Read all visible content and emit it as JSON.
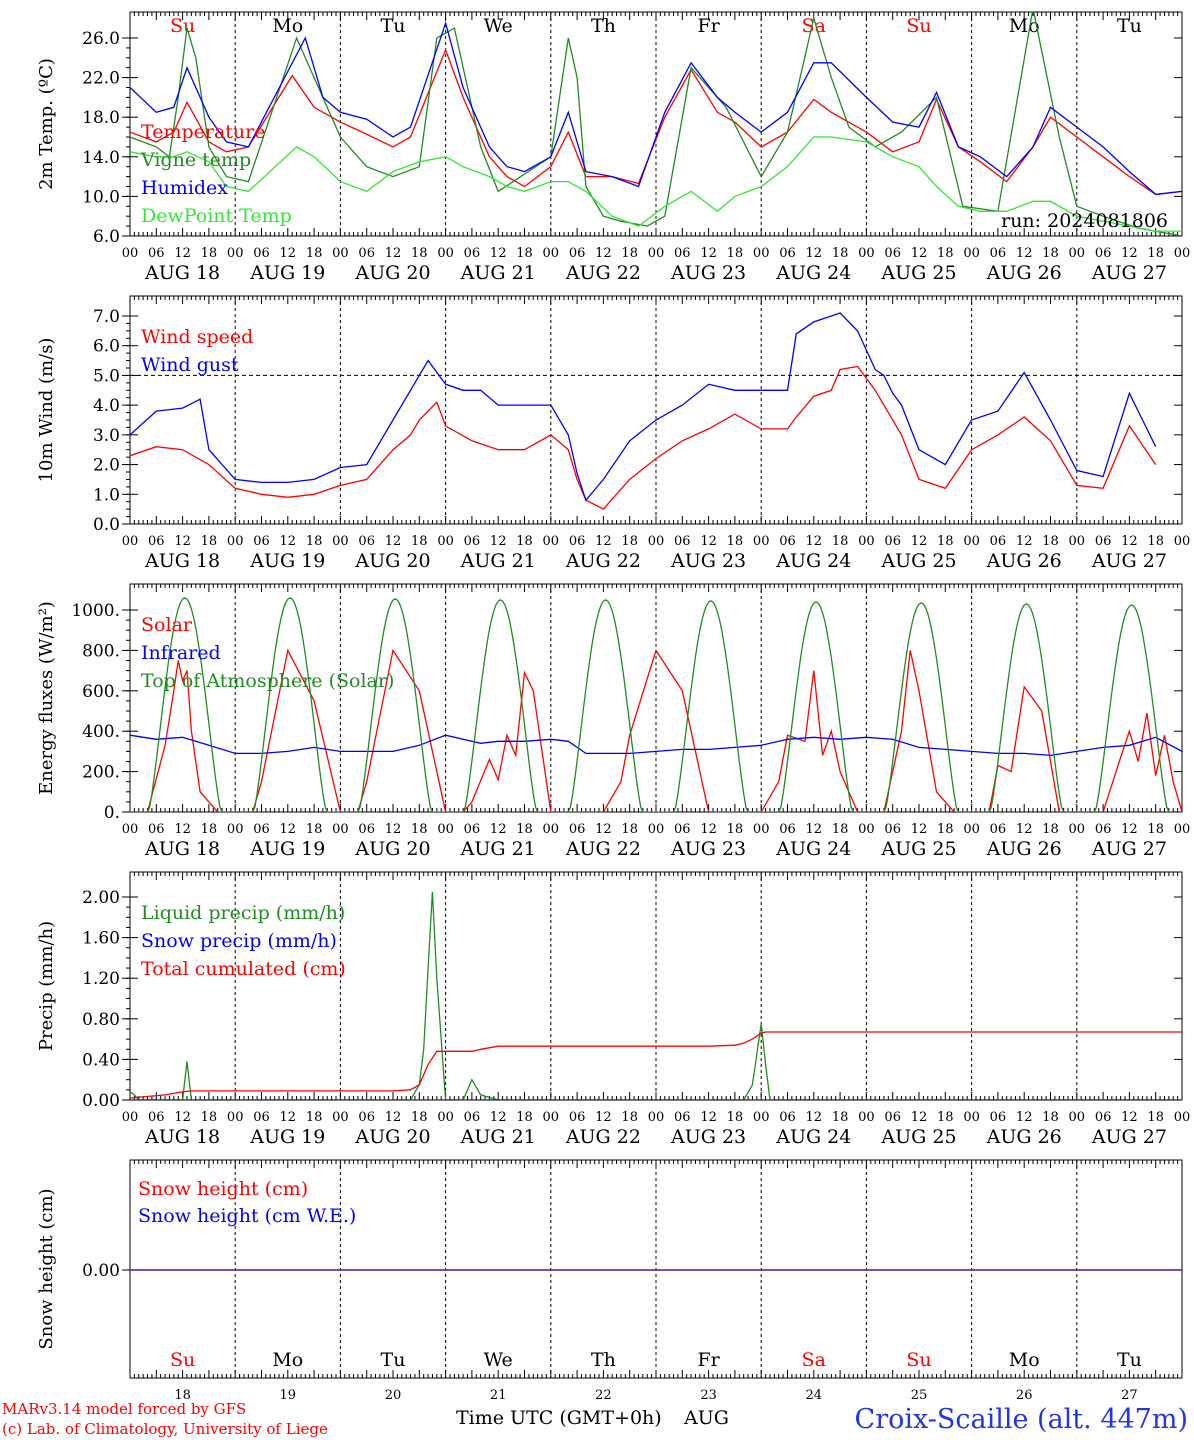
{
  "footer": {
    "model": "MARv3.14 model forced by GFS",
    "lab": "(c) Lab. of Climatology, University of Liege",
    "xlabel": "Time UTC (GMT+0h)",
    "month": "AUG",
    "station": "Croix-Scaille (alt. 447m)",
    "run": "run: 2024081806"
  },
  "colors": {
    "red": "#ff0000",
    "green": "#228b22",
    "lightgreen": "#33e633",
    "blue": "#0000ff",
    "purple": "#7030a0"
  },
  "days": {
    "dates": [
      "AUG 18",
      "AUG 19",
      "AUG 20",
      "AUG 21",
      "AUG 22",
      "AUG 23",
      "AUG 24",
      "AUG 25",
      "AUG 26",
      "AUG 27"
    ],
    "weekdays": [
      "Su",
      "Mo",
      "Tu",
      "We",
      "Th",
      "Fr",
      "Sa",
      "Su",
      "Mo",
      "Tu"
    ],
    "weekday_colors": [
      "#ff0000",
      "#000000",
      "#000000",
      "#000000",
      "#000000",
      "#000000",
      "#ff0000",
      "#ff0000",
      "#000000",
      "#000000"
    ],
    "day_numbers": [
      "18",
      "19",
      "20",
      "21",
      "22",
      "23",
      "24",
      "25",
      "26",
      "27"
    ],
    "hour_ticks": [
      "00",
      "06",
      "12",
      "18"
    ],
    "end_tick": "00"
  },
  "chart_data": [
    {
      "type": "line",
      "ylabel": "2m Temp. (ºC)",
      "ylim": [
        6,
        28
      ],
      "yticks": [
        "6.0",
        "10.0",
        "14.0",
        "18.0",
        "22.0",
        "26.0"
      ],
      "x_unit": "hours since AUG 18 00 UTC",
      "series": [
        {
          "name": "Temperature",
          "color": "#ff0000",
          "x": [
            0,
            6,
            10,
            13,
            18,
            22,
            27,
            37,
            42,
            48,
            53,
            60,
            64,
            72,
            76,
            82,
            86,
            90,
            96,
            100,
            104,
            110,
            116,
            122,
            128,
            134,
            138,
            144,
            150,
            156,
            160,
            168,
            174,
            180,
            184,
            189,
            194,
            200,
            206,
            210,
            216,
            222,
            228,
            234,
            240
          ],
          "y": [
            16.5,
            15.5,
            16.5,
            19.5,
            15.5,
            14.5,
            15,
            22.2,
            19,
            17.5,
            16.5,
            15,
            16,
            24.8,
            20,
            14,
            12,
            11,
            13,
            16.5,
            12,
            12,
            11.3,
            18,
            22.8,
            18.5,
            17.5,
            15,
            16.5,
            19.8,
            18.5,
            16.5,
            14.5,
            15.5,
            19.8,
            15,
            13.5,
            11.5,
            15,
            18,
            16,
            14,
            12,
            10.2,
            10.5
          ]
        },
        {
          "name": "Vigne temp",
          "color": "#228b22",
          "x": [
            0,
            6,
            9,
            11,
            13,
            15,
            18,
            22,
            27,
            38,
            42,
            48,
            54,
            60,
            66,
            70,
            74,
            80,
            84,
            96,
            100,
            102,
            104,
            108,
            112,
            118,
            122,
            128,
            136,
            144,
            150,
            156,
            160,
            164,
            170,
            176,
            184,
            190,
            198,
            206,
            212,
            216,
            222,
            230,
            240
          ],
          "y": [
            16,
            15,
            14,
            20,
            27,
            24,
            15,
            12,
            11.5,
            26,
            22,
            16,
            13,
            12,
            13,
            26,
            27,
            15,
            10.5,
            14,
            26,
            22,
            11,
            8,
            7.5,
            7,
            8,
            23,
            19,
            12,
            16.5,
            28,
            22,
            17,
            15,
            16.5,
            20,
            9,
            8.5,
            29,
            16,
            9,
            8,
            6.8,
            6
          ]
        },
        {
          "name": "Humidex",
          "color": "#0000ff",
          "x": [
            0,
            6,
            10,
            13,
            18,
            22,
            27,
            40,
            44,
            48,
            54,
            60,
            64,
            72,
            76,
            82,
            86,
            90,
            96,
            100,
            104,
            110,
            116,
            122,
            128,
            134,
            138,
            144,
            150,
            156,
            160,
            168,
            174,
            180,
            184,
            189,
            194,
            200,
            206,
            210,
            216,
            222,
            228,
            234,
            240
          ],
          "y": [
            21,
            18.5,
            19,
            23,
            18,
            15.5,
            15,
            26,
            20,
            18.5,
            17.8,
            16,
            17,
            27.5,
            21,
            15,
            13,
            12.5,
            14,
            18.5,
            12.5,
            12,
            11,
            18.5,
            23.5,
            20,
            18.5,
            16.5,
            18.5,
            23.5,
            23.5,
            20,
            17.5,
            17,
            20.5,
            15,
            14,
            12,
            15,
            19,
            17,
            15,
            12.5,
            10.2,
            10.5
          ]
        },
        {
          "name": "DewPoint Temp",
          "color": "#33e633",
          "x": [
            0,
            6,
            10,
            13,
            18,
            22,
            27,
            38,
            42,
            48,
            54,
            60,
            66,
            72,
            76,
            82,
            86,
            90,
            96,
            100,
            104,
            110,
            116,
            122,
            128,
            134,
            138,
            144,
            150,
            156,
            160,
            168,
            174,
            180,
            184,
            189,
            194,
            200,
            206,
            210,
            216,
            222,
            228,
            234,
            240
          ],
          "y": [
            14.5,
            14,
            14,
            14.5,
            13.5,
            11,
            10.5,
            15,
            14,
            11.5,
            10.5,
            12.5,
            13.5,
            14,
            13,
            12,
            11,
            10.5,
            11.5,
            11.5,
            10.5,
            8,
            7,
            9,
            10.5,
            8.5,
            10,
            11,
            13,
            16,
            16,
            15.5,
            14,
            13,
            11,
            9,
            8.5,
            8.5,
            9.5,
            9.5,
            8,
            7.5,
            7,
            6.5,
            6.5
          ]
        }
      ]
    },
    {
      "type": "line",
      "ylabel": "10m Wind (m/s)",
      "ylim": [
        0,
        7
      ],
      "yticks": [
        "0.0",
        "1.0",
        "2.0",
        "3.0",
        "4.0",
        "5.0",
        "6.0",
        "7.0"
      ],
      "reference_line": 5,
      "x_unit": "hours since AUG 18 00 UTC",
      "series": [
        {
          "name": "Wind speed",
          "color": "#ff0000",
          "x": [
            0,
            6,
            12,
            18,
            24,
            30,
            36,
            42,
            48,
            54,
            60,
            64,
            66,
            70,
            72,
            78,
            84,
            90,
            96,
            100,
            102,
            104,
            108,
            114,
            120,
            126,
            132,
            138,
            144,
            150,
            152,
            156,
            160,
            162,
            166,
            170,
            172,
            174,
            176,
            180,
            186,
            192,
            198,
            204,
            210,
            216,
            222,
            228,
            234
          ],
          "y": [
            2.3,
            2.6,
            2.5,
            2.0,
            1.2,
            1.0,
            0.9,
            1.0,
            1.3,
            1.5,
            2.5,
            3.0,
            3.5,
            4.1,
            3.3,
            2.8,
            2.5,
            2.5,
            3.0,
            2.5,
            1.5,
            0.8,
            0.5,
            1.5,
            2.2,
            2.8,
            3.2,
            3.7,
            3.2,
            3.2,
            3.6,
            4.3,
            4.5,
            5.2,
            5.3,
            4.5,
            4.0,
            3.5,
            3.0,
            1.5,
            1.2,
            2.5,
            3.0,
            3.6,
            2.8,
            1.3,
            1.2,
            3.3,
            2.0
          ]
        },
        {
          "name": "Wind gust",
          "color": "#0000ff",
          "x": [
            0,
            6,
            12,
            16,
            18,
            24,
            30,
            36,
            42,
            48,
            54,
            60,
            64,
            68,
            72,
            76,
            80,
            84,
            90,
            96,
            100,
            102,
            104,
            108,
            114,
            120,
            126,
            132,
            138,
            144,
            150,
            152,
            156,
            160,
            162,
            166,
            170,
            172,
            174,
            176,
            180,
            186,
            192,
            198,
            204,
            210,
            216,
            222,
            228,
            234
          ],
          "y": [
            3.0,
            3.8,
            3.9,
            4.2,
            2.5,
            1.5,
            1.4,
            1.4,
            1.5,
            1.9,
            2.0,
            3.5,
            4.5,
            5.5,
            4.7,
            4.5,
            4.5,
            4.0,
            4.0,
            4.0,
            3.0,
            1.7,
            0.8,
            1.5,
            2.8,
            3.5,
            4.0,
            4.7,
            4.5,
            4.5,
            4.5,
            6.4,
            6.8,
            7.0,
            7.1,
            6.5,
            5.2,
            5.0,
            4.4,
            4.0,
            2.5,
            2.0,
            3.5,
            3.8,
            5.1,
            3.5,
            1.8,
            1.6,
            4.4,
            2.6
          ]
        }
      ]
    },
    {
      "type": "line",
      "ylabel": "Energy fluxes (W/m²)",
      "ylim": [
        0,
        1100
      ],
      "yticks": [
        "0.",
        "200.",
        "400.",
        "600.",
        "800.",
        "1000."
      ],
      "x_unit": "hours since AUG 18 00 UTC",
      "series": [
        {
          "name": "Solar",
          "color": "#ff0000",
          "x": [
            0,
            4,
            8,
            10,
            11,
            12,
            13,
            14,
            16,
            20,
            28,
            30,
            36,
            42,
            48,
            52,
            54,
            60,
            66,
            72,
            76,
            78,
            82,
            84,
            86,
            88,
            90,
            92,
            96,
            98,
            100,
            104,
            108,
            112,
            114,
            120,
            126,
            132,
            136,
            140,
            144,
            148,
            150,
            154,
            156,
            158,
            160,
            162,
            166,
            172,
            176,
            178,
            180,
            184,
            188,
            196,
            198,
            201,
            204,
            208,
            212,
            220,
            222,
            226,
            228,
            230,
            232,
            234,
            236,
            238,
            240
          ],
          "y": [
            0,
            0,
            330,
            600,
            750,
            650,
            700,
            400,
            100,
            0,
            0,
            150,
            800,
            550,
            0,
            0,
            150,
            800,
            600,
            0,
            0,
            50,
            260,
            160,
            380,
            280,
            690,
            600,
            0,
            0,
            0,
            0,
            0,
            150,
            380,
            800,
            600,
            0,
            0,
            0,
            0,
            150,
            380,
            350,
            700,
            280,
            400,
            200,
            0,
            0,
            400,
            800,
            600,
            100,
            0,
            0,
            230,
            200,
            620,
            500,
            0,
            0,
            0,
            270,
            400,
            250,
            490,
            180,
            380,
            150,
            0
          ]
        },
        {
          "name": "Infrared",
          "color": "#0000ff",
          "x": [
            0,
            6,
            12,
            18,
            24,
            30,
            36,
            42,
            48,
            60,
            66,
            72,
            76,
            80,
            84,
            90,
            96,
            100,
            104,
            108,
            114,
            120,
            126,
            132,
            138,
            144,
            150,
            156,
            162,
            168,
            174,
            180,
            186,
            192,
            198,
            204,
            210,
            216,
            222,
            228,
            234,
            240
          ],
          "y": [
            380,
            360,
            370,
            330,
            290,
            290,
            300,
            320,
            300,
            300,
            330,
            380,
            360,
            340,
            350,
            350,
            360,
            350,
            290,
            290,
            290,
            300,
            310,
            310,
            320,
            330,
            360,
            370,
            360,
            370,
            360,
            320,
            310,
            300,
            290,
            290,
            280,
            300,
            320,
            330,
            370,
            300
          ]
        },
        {
          "name": "Top of Atmosphere (Solar)",
          "color": "#228b22",
          "x_day_peaks": [
            12.5,
            36.5,
            60.5,
            84.5,
            108.5,
            132.5,
            156.5,
            180.5,
            204.5,
            228.5
          ],
          "y_day_peaks": [
            1060,
            1060,
            1055,
            1050,
            1050,
            1045,
            1040,
            1035,
            1030,
            1025
          ]
        }
      ]
    },
    {
      "type": "line",
      "ylabel": "Precip (mm/h)",
      "ylim": [
        0,
        2.3
      ],
      "yticks": [
        "0.00",
        "0.40",
        "0.80",
        "1.20",
        "1.60",
        "2.00"
      ],
      "x_unit": "hours since AUG 18 00 UTC",
      "series": [
        {
          "name": "Liquid precip (mm/h)",
          "color": "#228b22",
          "x": [
            0,
            1,
            2,
            12,
            13,
            14,
            18,
            48,
            64,
            66,
            67,
            68,
            69,
            70,
            72,
            76,
            78,
            80,
            84,
            140,
            142,
            143,
            144,
            145,
            146,
            240
          ],
          "y": [
            0.08,
            0.05,
            0,
            0,
            0.38,
            0,
            0,
            0,
            0,
            0.15,
            0.5,
            1.3,
            2.05,
            1.2,
            0,
            0,
            0.2,
            0.05,
            0,
            0,
            0.15,
            0.45,
            0.75,
            0.35,
            0,
            0
          ]
        },
        {
          "name": "Snow precip (mm/h)",
          "color": "#0000ff",
          "x": [
            0,
            240
          ],
          "y": [
            0,
            0
          ]
        },
        {
          "name": "Total cumulated (cm)",
          "color": "#ff0000",
          "x": [
            0,
            8,
            12,
            14,
            60,
            64,
            66,
            68,
            70,
            78,
            80,
            84,
            132,
            138,
            140,
            142,
            144,
            145,
            240
          ],
          "y": [
            0.02,
            0.05,
            0.08,
            0.09,
            0.09,
            0.1,
            0.15,
            0.35,
            0.48,
            0.48,
            0.5,
            0.53,
            0.53,
            0.54,
            0.56,
            0.6,
            0.66,
            0.67,
            0.67
          ]
        }
      ]
    },
    {
      "type": "line",
      "ylabel": "Snow height (cm)",
      "yticks": [
        "0.00"
      ],
      "x_unit": "hours since AUG 18 00 UTC",
      "series": [
        {
          "name": "Snow height (cm)",
          "color": "#ff0000",
          "x": [
            0,
            240
          ],
          "y": [
            0,
            0
          ]
        },
        {
          "name": "Snow height (cm W.E.)",
          "color": "#0000ff",
          "x": [
            0,
            240
          ],
          "y": [
            0,
            0
          ]
        }
      ]
    }
  ]
}
